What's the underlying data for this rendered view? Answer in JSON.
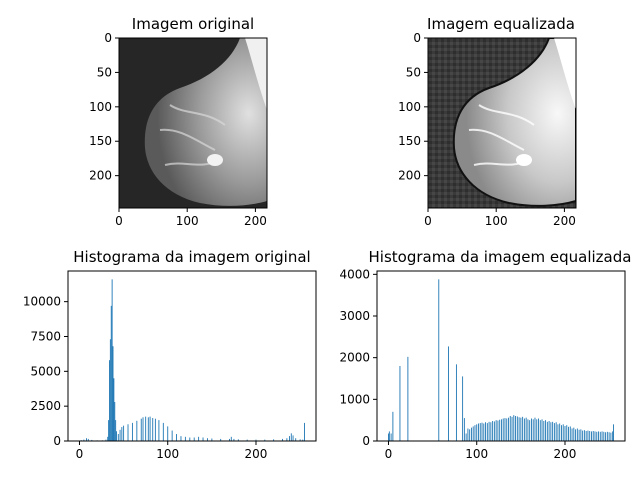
{
  "colors": {
    "bar": "#1f77b4",
    "axes": "#000000",
    "image_background_original": "#262626",
    "image_background_equalized": "#3a3a3a",
    "breast_tissue": "#bfbfbf",
    "chest_wall": "#f0f0f0"
  },
  "chart_data": [
    {
      "type": "image",
      "title": "Imagem original",
      "content": "mammogram",
      "x_ticks": [
        "0",
        "100",
        "200"
      ],
      "y_ticks": [
        "0",
        "50",
        "100",
        "150",
        "200"
      ],
      "xlim": [
        0,
        217
      ],
      "ylim": [
        247,
        0
      ]
    },
    {
      "type": "image",
      "title": "Imagem equalizada",
      "content": "mammogram (histogram equalized)",
      "x_ticks": [
        "0",
        "100",
        "200"
      ],
      "y_ticks": [
        "0",
        "50",
        "100",
        "150",
        "200"
      ],
      "xlim": [
        0,
        217
      ],
      "ylim": [
        247,
        0
      ]
    },
    {
      "type": "bar",
      "title": "Histograma da imagem original",
      "xlim": [
        -13,
        268
      ],
      "ylim": [
        0,
        12200
      ],
      "x_ticks": [
        "0",
        "100",
        "200"
      ],
      "y_ticks": [
        "0",
        "2500",
        "5000",
        "7500",
        "10000"
      ],
      "x_tick_values": [
        0,
        100,
        200
      ],
      "y_tick_values": [
        0,
        2500,
        5000,
        7500,
        10000
      ],
      "points": [
        [
          2,
          60
        ],
        [
          5,
          100
        ],
        [
          8,
          200
        ],
        [
          10,
          150
        ],
        [
          14,
          80
        ],
        [
          20,
          50
        ],
        [
          26,
          50
        ],
        [
          30,
          100
        ],
        [
          32,
          300
        ],
        [
          33,
          1500
        ],
        [
          34,
          5800
        ],
        [
          35,
          7300
        ],
        [
          36,
          9700
        ],
        [
          37,
          11600
        ],
        [
          38,
          6800
        ],
        [
          39,
          4500
        ],
        [
          40,
          2800
        ],
        [
          41,
          1500
        ],
        [
          42,
          700
        ],
        [
          44,
          500
        ],
        [
          46,
          800
        ],
        [
          48,
          1000
        ],
        [
          50,
          1100
        ],
        [
          55,
          1200
        ],
        [
          60,
          1300
        ],
        [
          65,
          1450
        ],
        [
          70,
          1600
        ],
        [
          72,
          1700
        ],
        [
          75,
          1750
        ],
        [
          78,
          1700
        ],
        [
          80,
          1750
        ],
        [
          83,
          1650
        ],
        [
          86,
          1600
        ],
        [
          90,
          1500
        ],
        [
          95,
          1300
        ],
        [
          100,
          1050
        ],
        [
          105,
          750
        ],
        [
          110,
          500
        ],
        [
          115,
          350
        ],
        [
          120,
          300
        ],
        [
          125,
          250
        ],
        [
          130,
          250
        ],
        [
          135,
          300
        ],
        [
          140,
          250
        ],
        [
          145,
          200
        ],
        [
          150,
          180
        ],
        [
          160,
          150
        ],
        [
          170,
          150
        ],
        [
          172,
          300
        ],
        [
          175,
          150
        ],
        [
          180,
          120
        ],
        [
          190,
          100
        ],
        [
          200,
          100
        ],
        [
          210,
          100
        ],
        [
          220,
          120
        ],
        [
          230,
          150
        ],
        [
          235,
          200
        ],
        [
          238,
          350
        ],
        [
          240,
          550
        ],
        [
          242,
          400
        ],
        [
          245,
          200
        ],
        [
          250,
          120
        ],
        [
          253,
          100
        ],
        [
          255,
          1300
        ]
      ]
    },
    {
      "type": "bar",
      "title": "Histograma da imagem equalizada",
      "xlim": [
        -13,
        268
      ],
      "ylim": [
        0,
        4080
      ],
      "x_ticks": [
        "0",
        "100",
        "200"
      ],
      "y_ticks": [
        "0",
        "1000",
        "2000",
        "3000",
        "4000"
      ],
      "x_tick_values": [
        0,
        100,
        200
      ],
      "y_tick_values": [
        0,
        1000,
        2000,
        3000,
        4000
      ],
      "points": [
        [
          0,
          180
        ],
        [
          1,
          230
        ],
        [
          3,
          180
        ],
        [
          5,
          700
        ],
        [
          13,
          1800
        ],
        [
          22,
          2020
        ],
        [
          57,
          3880
        ],
        [
          68,
          2270
        ],
        [
          77,
          1840
        ],
        [
          84,
          1550
        ],
        [
          86,
          550
        ],
        [
          88,
          180
        ],
        [
          90,
          300
        ],
        [
          92,
          280
        ],
        [
          94,
          320
        ],
        [
          96,
          350
        ],
        [
          98,
          380
        ],
        [
          100,
          400
        ],
        [
          102,
          420
        ],
        [
          104,
          430
        ],
        [
          106,
          440
        ],
        [
          108,
          420
        ],
        [
          110,
          450
        ],
        [
          112,
          430
        ],
        [
          114,
          460
        ],
        [
          116,
          450
        ],
        [
          118,
          480
        ],
        [
          120,
          470
        ],
        [
          122,
          500
        ],
        [
          124,
          490
        ],
        [
          126,
          510
        ],
        [
          128,
          520
        ],
        [
          130,
          540
        ],
        [
          132,
          550
        ],
        [
          134,
          540
        ],
        [
          136,
          560
        ],
        [
          138,
          600
        ],
        [
          140,
          580
        ],
        [
          142,
          620
        ],
        [
          144,
          600
        ],
        [
          146,
          590
        ],
        [
          148,
          570
        ],
        [
          150,
          560
        ],
        [
          152,
          580
        ],
        [
          154,
          540
        ],
        [
          156,
          560
        ],
        [
          158,
          520
        ],
        [
          160,
          500
        ],
        [
          162,
          540
        ],
        [
          164,
          520
        ],
        [
          166,
          560
        ],
        [
          168,
          520
        ],
        [
          170,
          540
        ],
        [
          172,
          500
        ],
        [
          174,
          520
        ],
        [
          176,
          480
        ],
        [
          178,
          500
        ],
        [
          180,
          460
        ],
        [
          182,
          480
        ],
        [
          184,
          450
        ],
        [
          186,
          460
        ],
        [
          188,
          430
        ],
        [
          190,
          450
        ],
        [
          192,
          400
        ],
        [
          194,
          420
        ],
        [
          196,
          380
        ],
        [
          198,
          400
        ],
        [
          200,
          360
        ],
        [
          202,
          380
        ],
        [
          204,
          340
        ],
        [
          206,
          350
        ],
        [
          208,
          300
        ],
        [
          210,
          320
        ],
        [
          212,
          280
        ],
        [
          214,
          300
        ],
        [
          216,
          270
        ],
        [
          218,
          280
        ],
        [
          220,
          250
        ],
        [
          222,
          260
        ],
        [
          224,
          240
        ],
        [
          226,
          250
        ],
        [
          228,
          240
        ],
        [
          230,
          230
        ],
        [
          232,
          240
        ],
        [
          234,
          230
        ],
        [
          236,
          220
        ],
        [
          238,
          230
        ],
        [
          240,
          220
        ],
        [
          242,
          230
        ],
        [
          244,
          220
        ],
        [
          246,
          210
        ],
        [
          248,
          220
        ],
        [
          250,
          210
        ],
        [
          252,
          200
        ],
        [
          254,
          230
        ],
        [
          255,
          400
        ]
      ]
    }
  ]
}
